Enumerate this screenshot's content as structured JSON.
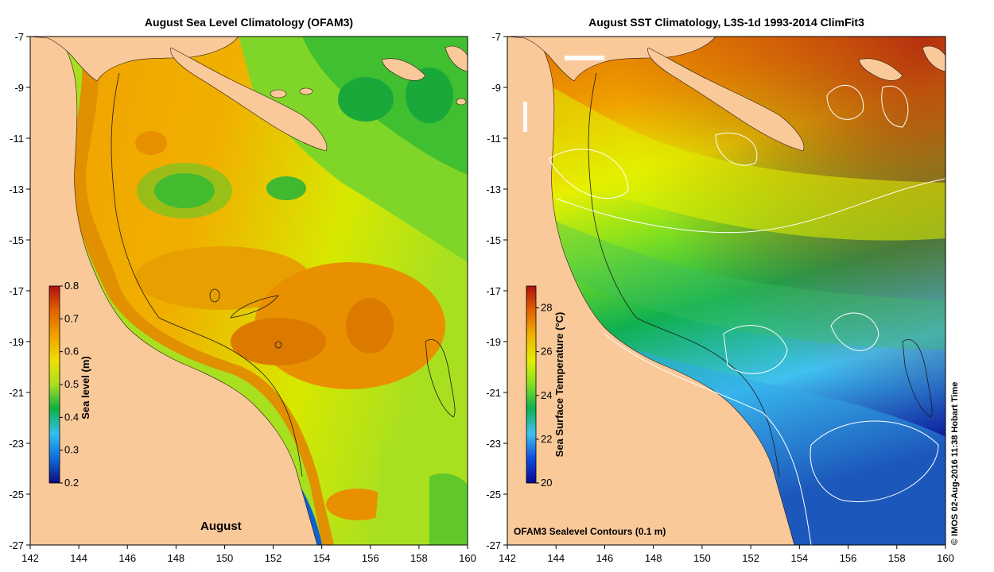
{
  "left_panel": {
    "title": "August Sea Level Climatology (OFAM3)",
    "month_label": "August",
    "colorbar": {
      "label": "Sea level (m)",
      "ticks": [
        "0.8",
        "0.7",
        "0.6",
        "0.5",
        "0.4",
        "0.3",
        "0.2"
      ],
      "range": [
        0.2,
        0.8
      ]
    }
  },
  "right_panel": {
    "title": "August SST Climatology, L3S-1d 1993-2014 ClimFit3",
    "contours_label": "OFAM3 Sealevel Contours (0.1 m)",
    "colorbar": {
      "label": "Sea Surface Temperature (°C)",
      "ticks": [
        "28",
        "26",
        "24",
        "22",
        "20"
      ],
      "range": [
        20,
        29
      ]
    }
  },
  "axes": {
    "x_ticks": [
      "142",
      "144",
      "146",
      "148",
      "150",
      "152",
      "154",
      "156",
      "158",
      "160"
    ],
    "y_ticks": [
      "-7",
      "-9",
      "-11",
      "-13",
      "-15",
      "-17",
      "-19",
      "-21",
      "-23",
      "-25",
      "-27"
    ]
  },
  "credit": "© IMOS 02-Aug-2016 11:38 Hobart Time",
  "colors": {
    "land": "#f9c99a",
    "sea_level_scale": [
      "#0a0a80",
      "#1070e0",
      "#30c0f0",
      "#10b040",
      "#a8e020",
      "#f0e000",
      "#f0a000",
      "#e06000",
      "#b01010"
    ],
    "sst_scale": [
      "#080890",
      "#1050e0",
      "#40c0f0",
      "#10b050",
      "#80e020",
      "#e0f000",
      "#f0b000",
      "#e06000",
      "#b01010"
    ]
  }
}
